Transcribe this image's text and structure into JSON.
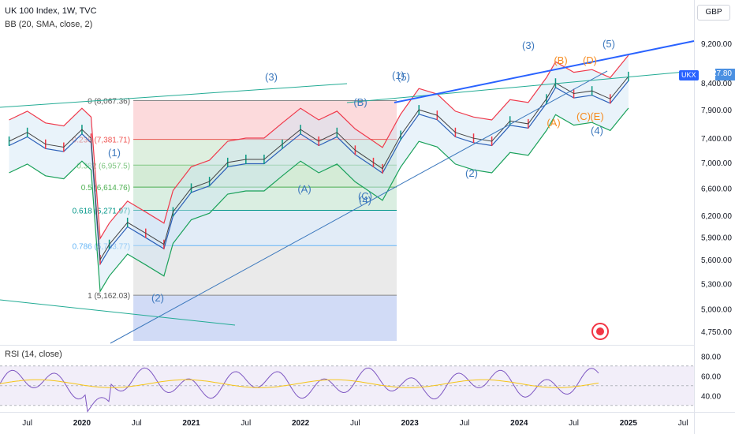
{
  "legend": {
    "symbol": "UK 100 Index, 1W, TVC",
    "bb": "BB (20, SMA, close, 2)",
    "rsi": "RSI (14, close)"
  },
  "currency_button": "GBP",
  "last_price": "8,527.80",
  "symbol_tag": "UKX",
  "colors": {
    "bb_upper": "#ef3a4c",
    "bb_lower": "#1aa15a",
    "bb_basis": "#2b5fb8",
    "trend_blue": "#2962ff",
    "trend_green": "#22ab94",
    "elliott_blue": "#3c78bd",
    "elliott_orange": "#f68b1f",
    "rsi_line": "#7e57c2",
    "rsi_ma": "#f5c518"
  },
  "chart_data": {
    "type": "line",
    "x_axis_labels": [
      "Jul",
      "2020",
      "Jul",
      "2021",
      "Jul",
      "2022",
      "Jul",
      "2023",
      "Jul",
      "2024",
      "Jul",
      "2025",
      "Jul"
    ],
    "y_axis": {
      "scale": "log",
      "ticks": [
        "9,200.00",
        "8,400.00",
        "7,900.00",
        "7,400.00",
        "7,000.00",
        "6,600.00",
        "6,200.00",
        "5,900.00",
        "5,600.00",
        "5,300.00",
        "5,000.00",
        "4,750.00"
      ],
      "range": [
        4600,
        9700
      ]
    },
    "rsi_axis": {
      "ticks": [
        "80.00",
        "60.00",
        "40.00"
      ],
      "range": [
        25,
        85
      ],
      "bands": [
        30,
        70
      ]
    },
    "series": [
      {
        "x": [
          "2019-05",
          "2019-07",
          "2019-09",
          "2019-11",
          "2020-01",
          "2020-02",
          "2020-03",
          "2020-04",
          "2020-06",
          "2020-08",
          "2020-10",
          "2020-11",
          "2021-01",
          "2021-03",
          "2021-05",
          "2021-07",
          "2021-09",
          "2021-11",
          "2022-01",
          "2022-03",
          "2022-05",
          "2022-07",
          "2022-09",
          "2022-10",
          "2022-12",
          "2023-02",
          "2023-04",
          "2023-06",
          "2023-08",
          "2023-10",
          "2023-12",
          "2024-02",
          "2024-04",
          "2024-05",
          "2024-07",
          "2024-09",
          "2024-11",
          "2025-01"
        ],
        "y": [
          7350,
          7500,
          7300,
          7250,
          7550,
          7400,
          5600,
          5800,
          6100,
          5950,
          5800,
          6250,
          6600,
          6700,
          7000,
          7050,
          7050,
          7300,
          7550,
          7350,
          7500,
          7200,
          7000,
          6900,
          7450,
          7900,
          7800,
          7500,
          7400,
          7350,
          7700,
          7650,
          8100,
          8400,
          8200,
          8250,
          8100,
          8527.8
        ]
      }
    ],
    "fibonacci": [
      {
        "level": "0",
        "price": "8,067.36"
      },
      {
        "level": "0.236",
        "price": "7,381.71"
      },
      {
        "level": "0.382",
        "price": "6,957.5"
      },
      {
        "level": "0.5",
        "price": "6,614.76"
      },
      {
        "level": "0.618",
        "price": "6,271.97"
      },
      {
        "level": "0.786",
        "price": "5,783.77"
      },
      {
        "level": "1",
        "price": "5,162.03"
      }
    ],
    "elliott_labels": [
      "(1)",
      "(2)",
      "(3)",
      "(A)",
      "(B)",
      "(C)",
      "(4)",
      "(1)",
      "(5)",
      "(2)",
      "(3)",
      "(4)",
      "(5)",
      "(A)",
      "(B)",
      "(C)",
      "(D)",
      "(E)"
    ]
  }
}
